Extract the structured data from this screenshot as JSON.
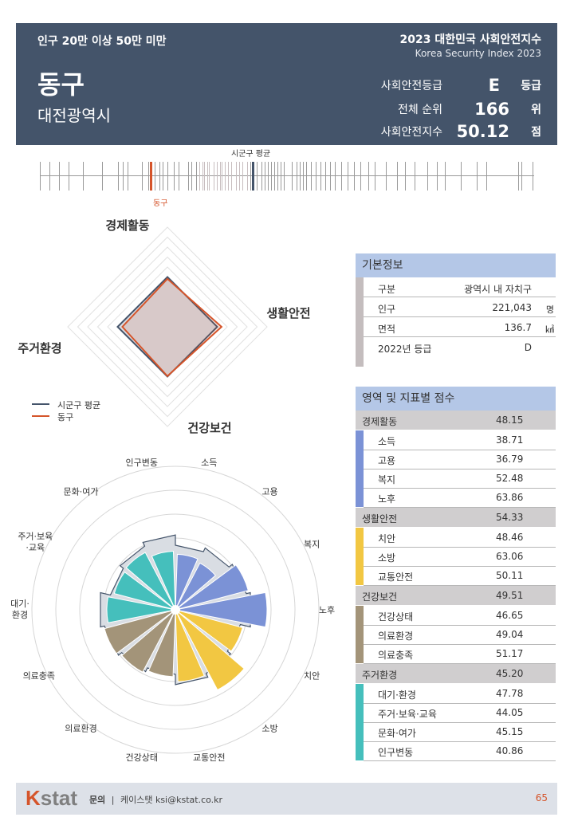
{
  "header": {
    "category": "인구 20만 이상 50만 미만",
    "district": "동구",
    "region": "대전광역시",
    "index_title": "2023 대한민국 사회안전지수",
    "index_subtitle": "Korea Security Index 2023",
    "grade_label": "사회안전등급",
    "grade_value": "E",
    "grade_unit": "등급",
    "rank_label": "전체 순위",
    "rank_value": "166",
    "rank_unit": "위",
    "score_label": "사회안전지수",
    "score_value": "50.12",
    "score_unit": "점"
  },
  "strip": {
    "avg_label": "시군구 평균",
    "dong_label": "동구"
  },
  "colors": {
    "header_bg": "#44546a",
    "dong": "#d5542a",
    "avg": "#44546a",
    "economy": "#7b92d6",
    "safety": "#f2c742",
    "health": "#a39479",
    "housing": "#45bfbc"
  },
  "chart_data": [
    {
      "type": "radar",
      "axes": [
        "경제활동",
        "생활안전",
        "건강보건",
        "주거환경"
      ],
      "series": [
        {
          "name": "시군구 평균",
          "values": [
            50.0,
            50.0,
            50.0,
            50.0
          ]
        },
        {
          "name": "동구",
          "values": [
            48.15,
            54.33,
            49.51,
            45.2
          ]
        }
      ]
    },
    {
      "type": "polar_bar",
      "categories": [
        "소득",
        "고용",
        "복지",
        "노후",
        "치안",
        "소방",
        "교통안전",
        "건강상태",
        "의료환경",
        "의료충족",
        "대기·환경",
        "주거·보육·교육",
        "문화·여가",
        "인구변동"
      ],
      "values": [
        38.71,
        36.79,
        52.48,
        63.86,
        48.46,
        63.06,
        50.11,
        46.65,
        49.04,
        51.17,
        47.78,
        44.05,
        45.15,
        40.86
      ],
      "groups": [
        "경제활동",
        "경제활동",
        "경제활동",
        "경제활동",
        "생활안전",
        "생활안전",
        "생활안전",
        "건강보건",
        "건강보건",
        "건강보건",
        "주거환경",
        "주거환경",
        "주거환경",
        "주거환경"
      ]
    }
  ],
  "basic_info": {
    "title": "기본정보",
    "rows": [
      {
        "label": "구분",
        "value": "광역시 내 자치구",
        "unit": ""
      },
      {
        "label": "인구",
        "value": "221,043",
        "unit": "명"
      },
      {
        "label": "면적",
        "value": "136.7",
        "unit": "㎢"
      },
      {
        "label": "2022년 등급",
        "value": "D",
        "unit": ""
      }
    ]
  },
  "scores": {
    "title": "영역 및 지표별 점수",
    "groups": [
      {
        "name": "경제활동",
        "score": "48.15",
        "items": [
          {
            "label": "소득",
            "value": "38.71"
          },
          {
            "label": "고용",
            "value": "36.79"
          },
          {
            "label": "복지",
            "value": "52.48"
          },
          {
            "label": "노후",
            "value": "63.86"
          }
        ]
      },
      {
        "name": "생활안전",
        "score": "54.33",
        "items": [
          {
            "label": "치안",
            "value": "48.46"
          },
          {
            "label": "소방",
            "value": "63.06"
          },
          {
            "label": "교통안전",
            "value": "50.11"
          }
        ]
      },
      {
        "name": "건강보건",
        "score": "49.51",
        "items": [
          {
            "label": "건강상태",
            "value": "46.65"
          },
          {
            "label": "의료환경",
            "value": "49.04"
          },
          {
            "label": "의료충족",
            "value": "51.17"
          }
        ]
      },
      {
        "name": "주거환경",
        "score": "45.20",
        "items": [
          {
            "label": "대기·환경",
            "value": "47.78"
          },
          {
            "label": "주거·보육·교육",
            "value": "44.05"
          },
          {
            "label": "문화·여가",
            "value": "45.15"
          },
          {
            "label": "인구변동",
            "value": "40.86"
          }
        ]
      }
    ]
  },
  "polar_labels": [
    "소득",
    "고용",
    "복지",
    "노후",
    "치안",
    "소방",
    "교통안전",
    "건강상태",
    "의료환경",
    "의료충족",
    "대기·\n환경",
    "주거·보육\n·교육",
    "문화·여가",
    "인구변동"
  ],
  "footer": {
    "logo_k": "K",
    "logo_stat": "stat",
    "contact_label": "문의",
    "contact": "케이스탯 ksi@kstat.co.kr",
    "page": "65"
  }
}
